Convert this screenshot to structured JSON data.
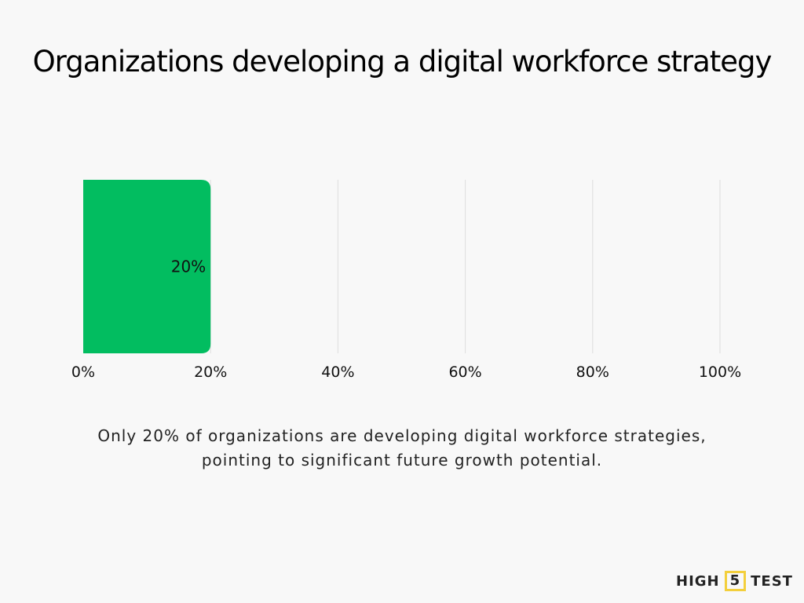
{
  "chart_data": {
    "type": "bar",
    "orientation": "horizontal",
    "title": "Organizations developing a digital workforce strategy",
    "categories": [
      ""
    ],
    "values": [
      20
    ],
    "data_labels": [
      "20%"
    ],
    "xlim": [
      0,
      100
    ],
    "xticks": [
      "0%",
      "20%",
      "40%",
      "60%",
      "80%",
      "100%"
    ],
    "tick_values": [
      0,
      20,
      40,
      60,
      80,
      100
    ],
    "grid": true,
    "bar_color": "#02bd60",
    "grid_color": "#dddddd"
  },
  "caption": "Only 20% of organizations are developing digital workforce strategies, pointing to significant future growth potential.",
  "logo": {
    "left": "HIGH",
    "middle": "5",
    "right": "TEST"
  }
}
